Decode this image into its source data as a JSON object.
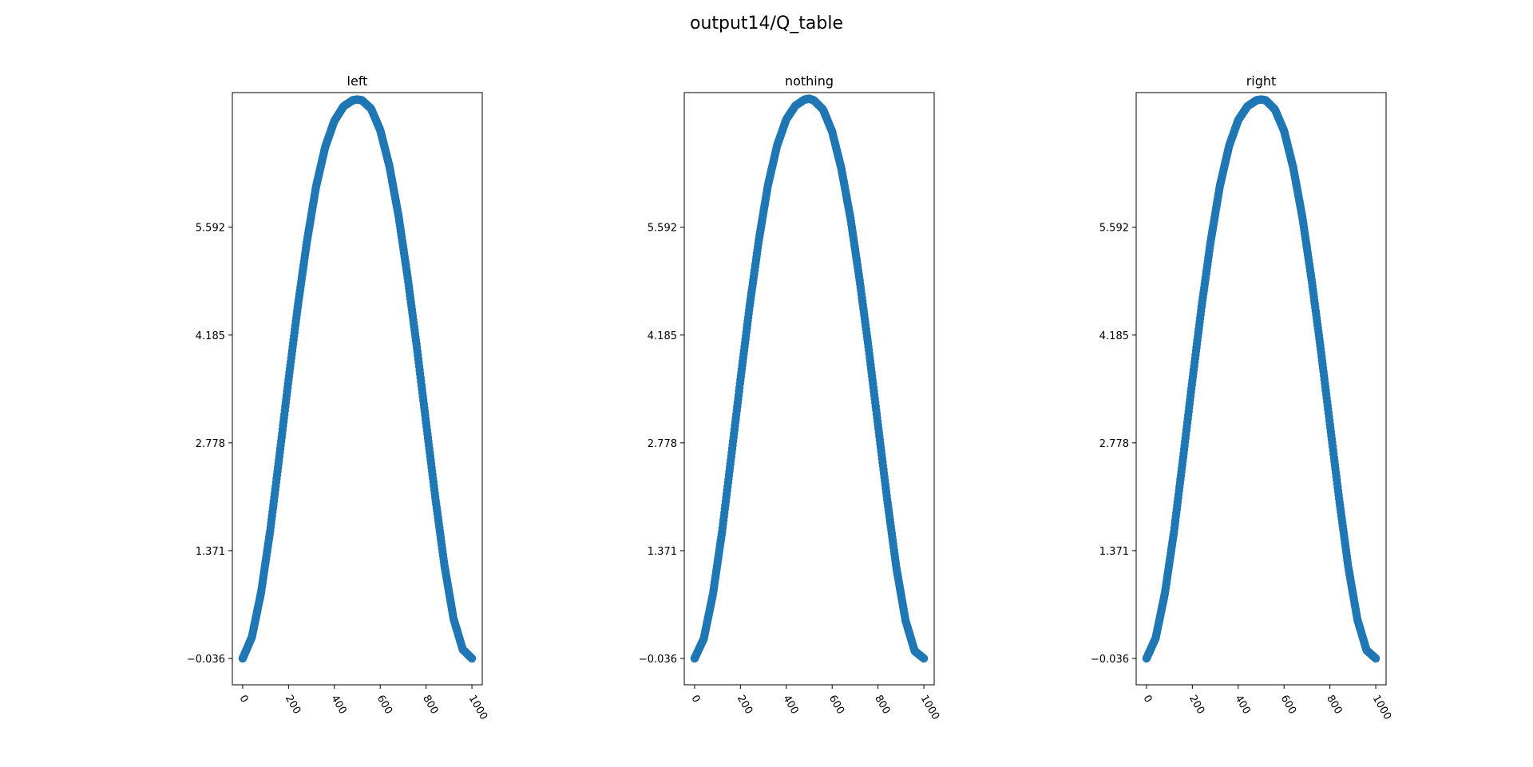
{
  "figure": {
    "suptitle": "output14/Q_table",
    "point_color": "#1f77b4"
  },
  "chart_data": [
    {
      "type": "scatter",
      "title": "left",
      "xlabel": "",
      "ylabel": "",
      "xlim": [
        -45,
        1045
      ],
      "ylim": [
        -0.38,
        7.35
      ],
      "xticks": [
        0,
        200,
        400,
        600,
        800,
        1000
      ],
      "xtick_labels": [
        "0",
        "200",
        "400",
        "600",
        "800",
        "1000"
      ],
      "yticks": [
        -0.036,
        1.371,
        2.778,
        4.185,
        5.592
      ],
      "ytick_labels": [
        "−0.036",
        "1.371",
        "2.778",
        "4.185",
        "5.592"
      ],
      "grid": false,
      "series": [
        {
          "x": [
            0,
            40,
            80,
            120,
            160,
            200,
            240,
            280,
            320,
            360,
            400,
            440,
            480,
            500,
            520,
            560,
            600,
            640,
            680,
            720,
            760,
            800,
            840,
            880,
            920,
            960,
            1000
          ],
          "y": [
            -0.036,
            0.24,
            0.82,
            1.63,
            2.6,
            3.6,
            4.55,
            5.4,
            6.12,
            6.64,
            6.98,
            7.17,
            7.25,
            7.26,
            7.25,
            7.14,
            6.86,
            6.39,
            5.74,
            4.93,
            4.02,
            3.04,
            2.07,
            1.18,
            0.48,
            0.08,
            -0.036
          ]
        }
      ]
    },
    {
      "type": "scatter",
      "title": "nothing",
      "xlabel": "",
      "ylabel": "",
      "xlim": [
        -45,
        1045
      ],
      "ylim": [
        -0.38,
        7.35
      ],
      "xticks": [
        0,
        200,
        400,
        600,
        800,
        1000
      ],
      "xtick_labels": [
        "0",
        "200",
        "400",
        "600",
        "800",
        "1000"
      ],
      "yticks": [
        -0.036,
        1.371,
        2.778,
        4.185,
        5.592
      ],
      "ytick_labels": [
        "−0.036",
        "1.371",
        "2.778",
        "4.185",
        "5.592"
      ],
      "grid": false,
      "series": [
        {
          "x": [
            0,
            40,
            80,
            120,
            160,
            200,
            240,
            280,
            320,
            360,
            400,
            440,
            480,
            500,
            520,
            560,
            600,
            640,
            680,
            720,
            760,
            800,
            840,
            880,
            920,
            960,
            1000
          ],
          "y": [
            -0.036,
            0.22,
            0.8,
            1.62,
            2.6,
            3.6,
            4.56,
            5.42,
            6.14,
            6.66,
            7.0,
            7.18,
            7.26,
            7.27,
            7.25,
            7.13,
            6.84,
            6.36,
            5.71,
            4.9,
            3.99,
            3.01,
            2.04,
            1.15,
            0.46,
            0.06,
            -0.036
          ]
        }
      ]
    },
    {
      "type": "scatter",
      "title": "right",
      "xlabel": "",
      "ylabel": "",
      "xlim": [
        -45,
        1045
      ],
      "ylim": [
        -0.38,
        7.35
      ],
      "xticks": [
        0,
        200,
        400,
        600,
        800,
        1000
      ],
      "xtick_labels": [
        "0",
        "200",
        "400",
        "600",
        "800",
        "1000"
      ],
      "yticks": [
        -0.036,
        1.371,
        2.778,
        4.185,
        5.592
      ],
      "ytick_labels": [
        "−0.036",
        "1.371",
        "2.778",
        "4.185",
        "5.592"
      ],
      "grid": false,
      "series": [
        {
          "x": [
            0,
            40,
            80,
            120,
            160,
            200,
            240,
            280,
            320,
            360,
            400,
            440,
            480,
            500,
            520,
            560,
            600,
            640,
            680,
            720,
            760,
            800,
            840,
            880,
            920,
            960,
            1000
          ],
          "y": [
            -0.036,
            0.23,
            0.81,
            1.62,
            2.59,
            3.59,
            4.55,
            5.41,
            6.13,
            6.65,
            6.99,
            7.17,
            7.25,
            7.26,
            7.25,
            7.13,
            6.85,
            6.37,
            5.72,
            4.91,
            4.0,
            3.02,
            2.05,
            1.16,
            0.47,
            0.07,
            -0.036
          ]
        }
      ]
    }
  ]
}
